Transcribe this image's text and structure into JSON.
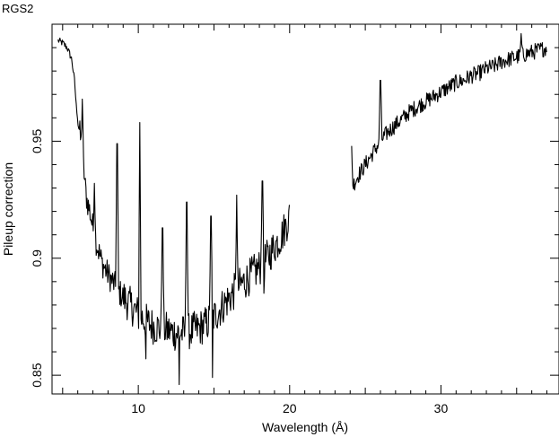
{
  "chart_data": {
    "type": "line",
    "title": "RGS2",
    "xlabel": "Wavelength (Å)",
    "ylabel": "Pileup correction",
    "xlim": [
      4.3,
      37.8
    ],
    "ylim": [
      0.842,
      1.0
    ],
    "xticks": [
      10,
      20,
      30
    ],
    "xtick_labels": [
      "10",
      "20",
      "30"
    ],
    "yticks": [
      0.85,
      0.9,
      0.95
    ],
    "ytick_labels": [
      "0.85",
      "0.9",
      "0.95"
    ],
    "grid": false,
    "colors": {
      "line": "#000000",
      "axes": "#000000",
      "background": "#ffffff"
    },
    "series": [
      {
        "x": [
          4.7,
          5.0,
          5.3,
          5.6,
          5.8,
          5.9,
          6.0,
          6.1,
          6.2,
          6.3,
          6.4,
          6.5,
          6.6,
          6.8,
          7.0,
          7.3,
          7.6,
          8.0,
          8.4,
          8.8,
          9.2,
          9.6,
          10.0,
          10.5,
          11.0,
          11.5,
          12.0,
          12.5,
          13.0,
          13.5,
          14.0,
          14.5,
          15.0,
          15.5,
          16.0,
          16.5,
          17.0,
          17.5,
          18.0,
          18.5,
          19.0,
          19.5,
          20.0
        ],
        "y": [
          0.993,
          0.992,
          0.99,
          0.985,
          0.975,
          0.965,
          0.96,
          0.955,
          0.95,
          0.945,
          0.938,
          0.93,
          0.925,
          0.92,
          0.913,
          0.905,
          0.898,
          0.893,
          0.889,
          0.885,
          0.882,
          0.879,
          0.876,
          0.873,
          0.871,
          0.87,
          0.869,
          0.868,
          0.868,
          0.869,
          0.87,
          0.872,
          0.875,
          0.879,
          0.883,
          0.887,
          0.89,
          0.893,
          0.896,
          0.9,
          0.905,
          0.91,
          0.918
        ]
      },
      {
        "x": [
          24.1,
          24.5,
          25.0,
          25.5,
          26.0,
          26.5,
          27.0,
          27.5,
          28.0,
          28.5,
          29.0,
          29.5,
          30.0,
          30.5,
          31.0,
          31.5,
          32.0,
          32.5,
          33.0,
          33.5,
          34.0,
          34.5,
          35.0,
          35.5,
          36.0,
          36.5,
          37.0
        ],
        "y": [
          0.93,
          0.935,
          0.94,
          0.945,
          0.95,
          0.954,
          0.957,
          0.96,
          0.963,
          0.965,
          0.967,
          0.969,
          0.971,
          0.973,
          0.975,
          0.976,
          0.978,
          0.979,
          0.981,
          0.982,
          0.984,
          0.985,
          0.986,
          0.987,
          0.988,
          0.989,
          0.99
        ]
      }
    ],
    "spikes": [
      {
        "x": 6.3,
        "y": 0.968
      },
      {
        "x": 7.1,
        "y": 0.932
      },
      {
        "x": 8.6,
        "y": 0.949
      },
      {
        "x": 10.1,
        "y": 0.958
      },
      {
        "x": 11.6,
        "y": 0.913
      },
      {
        "x": 13.2,
        "y": 0.924
      },
      {
        "x": 14.8,
        "y": 0.918
      },
      {
        "x": 16.5,
        "y": 0.927
      },
      {
        "x": 18.2,
        "y": 0.933
      },
      {
        "x": 24.1,
        "y": 0.948
      },
      {
        "x": 26.0,
        "y": 0.976
      },
      {
        "x": 35.3,
        "y": 0.996
      }
    ],
    "dips": [
      {
        "x": 12.7,
        "y": 0.846
      },
      {
        "x": 14.9,
        "y": 0.849
      },
      {
        "x": 10.5,
        "y": 0.857
      },
      {
        "x": 18.3,
        "y": 0.885
      }
    ]
  }
}
